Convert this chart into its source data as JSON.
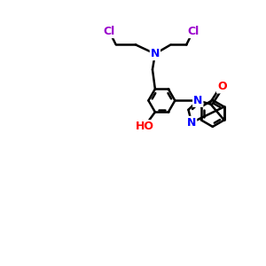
{
  "bg_color": "#ffffff",
  "bond_color": "#000000",
  "bond_width": 1.8,
  "atom_colors": {
    "N": "#0000ff",
    "O": "#ff0000",
    "Cl": "#9900cc",
    "C": "#000000"
  },
  "font_size_atom": 9,
  "scale": 1.0
}
